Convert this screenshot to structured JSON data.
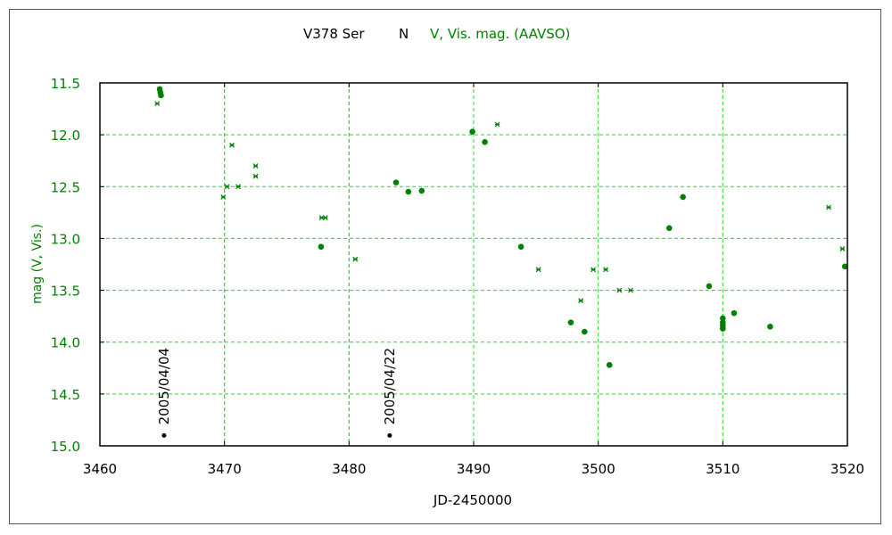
{
  "chart_data": {
    "type": "scatter",
    "title": {
      "object": "V378 Ser",
      "type": "N",
      "series_label": "V, Vis. mag. (AAVSO)"
    },
    "xlabel": "JD-2450000",
    "ylabel": "mag (V, Vis.)",
    "xlim": [
      3460,
      3520
    ],
    "ylim": [
      11.5,
      15.0
    ],
    "y_inverted": true,
    "xticks": [
      "3460",
      "3470",
      "3480",
      "3490",
      "3500",
      "3510",
      "3520"
    ],
    "yticks": [
      "11.5",
      "12.0",
      "12.5",
      "13.0",
      "13.5",
      "14.0",
      "14.5",
      "15.0"
    ],
    "grid": true,
    "colors": {
      "data": "#008000",
      "grid": "#22dd22",
      "date_line": "#22dd22",
      "marker": "#000000"
    },
    "series": [
      {
        "name": "Vis.",
        "marker": "filled-circle",
        "x": [
          3464.8,
          3464.85,
          3464.9,
          3477.75,
          3483.77,
          3484.76,
          3485.83,
          3489.9,
          3490.9,
          3493.8,
          3497.8,
          3498.9,
          3500.9,
          3505.7,
          3506.8,
          3508.9,
          3510.0,
          3510.0,
          3510.0,
          3510.0,
          3510.9,
          3513.8,
          3519.8
        ],
        "y": [
          11.56,
          11.59,
          11.62,
          13.08,
          12.46,
          12.55,
          12.54,
          11.97,
          12.07,
          13.08,
          13.81,
          13.9,
          14.22,
          12.9,
          12.6,
          13.46,
          13.77,
          13.81,
          13.84,
          13.87,
          13.72,
          13.85,
          13.27
        ]
      },
      {
        "name": "V",
        "marker": "asterisk",
        "x": [
          3464.6,
          3469.9,
          3470.2,
          3470.6,
          3471.1,
          3472.5,
          3472.5,
          3477.8,
          3478.1,
          3480.5,
          3491.9,
          3495.2,
          3499.6,
          3500.6,
          3498.6,
          3501.7,
          3502.6,
          3518.5,
          3519.6
        ],
        "y": [
          11.7,
          12.6,
          12.5,
          12.1,
          12.5,
          12.3,
          12.4,
          12.8,
          12.8,
          13.2,
          11.9,
          13.3,
          13.3,
          13.3,
          13.6,
          13.5,
          13.5,
          12.7,
          13.1
        ]
      }
    ],
    "date_lines": [
      3470,
      3480
    ],
    "date_markers": [
      {
        "x": 3465.15,
        "y": 14.9,
        "label": "2005/04/04"
      },
      {
        "x": 3483.26,
        "y": 14.9,
        "label": "2005/04/22"
      }
    ]
  }
}
